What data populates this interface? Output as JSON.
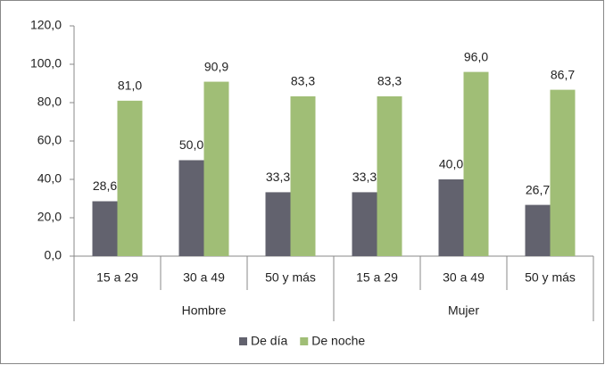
{
  "chart_data": {
    "type": "bar",
    "categories": [
      "15 a 29",
      "30 a 49",
      "50  y más",
      "15 a 29",
      "30 a 49",
      "50  y más"
    ],
    "category_groups": [
      "Hombre",
      "Mujer"
    ],
    "series": [
      {
        "name": "De día",
        "color": "#62626e",
        "values": [
          28.6,
          50.0,
          33.3,
          33.3,
          40.0,
          26.7
        ],
        "value_labels": [
          "28,6",
          "50,0",
          "33,3",
          "33,3",
          "40,0",
          "26,7"
        ]
      },
      {
        "name": "De noche",
        "color": "#a0be76",
        "values": [
          81.0,
          90.9,
          83.3,
          83.3,
          96.0,
          86.7
        ],
        "value_labels": [
          "81,0",
          "90,9",
          "83,3",
          "83,3",
          "96,0",
          "86,7"
        ]
      }
    ],
    "ylim": [
      0,
      120
    ],
    "yticks": [
      {
        "value": 0,
        "label": "0,0"
      },
      {
        "value": 20,
        "label": "20,0"
      },
      {
        "value": 40,
        "label": "40,0"
      },
      {
        "value": 60,
        "label": "60,0"
      },
      {
        "value": 80,
        "label": "80,0"
      },
      {
        "value": 100,
        "label": "100,0"
      },
      {
        "value": 120,
        "label": "120,0"
      }
    ],
    "grid": false,
    "legend": "bottom"
  }
}
